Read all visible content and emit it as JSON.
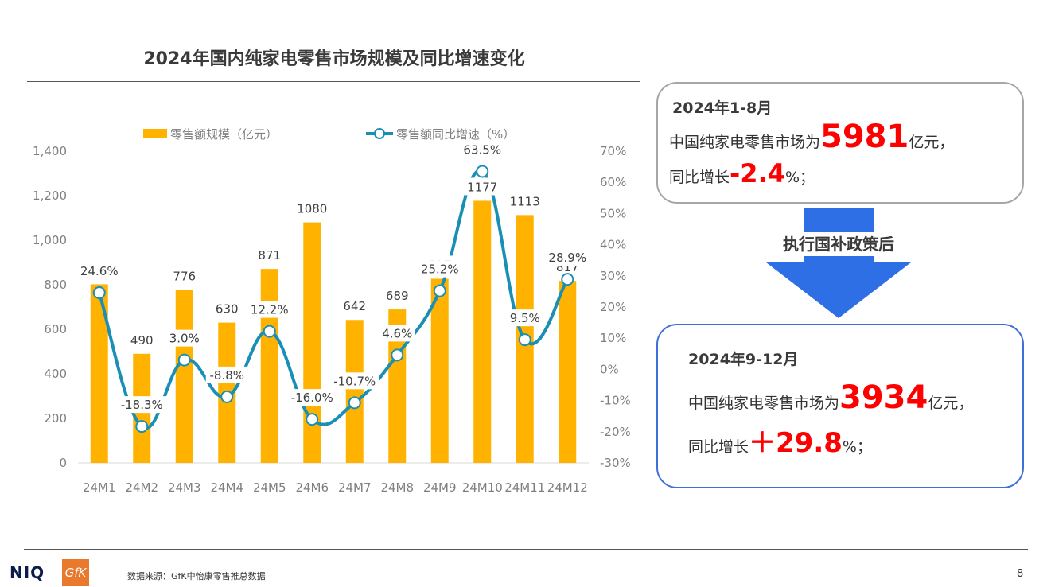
{
  "title": "2024年国内纯家电零售市场规模及同比增速变化",
  "chart_data": {
    "type": "bar+line",
    "categories": [
      "24M1",
      "24M2",
      "24M3",
      "24M4",
      "24M5",
      "24M6",
      "24M7",
      "24M8",
      "24M9",
      "24M10",
      "24M11",
      "24M12"
    ],
    "series": [
      {
        "name": "零售额规模（亿元）",
        "type": "bar",
        "axis": "left",
        "values": [
          802,
          490,
          776,
          630,
          871,
          1080,
          642,
          689,
          827,
          1177,
          1113,
          817
        ],
        "labels": [
          "802",
          "490",
          "776",
          "630",
          "871",
          "1080",
          "642",
          "689",
          "827",
          "1177",
          "1113",
          "817"
        ]
      },
      {
        "name": "零售额同比增速（%）",
        "type": "line",
        "axis": "right",
        "values": [
          24.6,
          -18.3,
          3.0,
          -8.8,
          12.2,
          -16.0,
          -10.7,
          4.6,
          25.2,
          63.5,
          9.5,
          28.9
        ],
        "labels": [
          "24.6%",
          "-18.3%",
          "3.0%",
          "-8.8%",
          "12.2%",
          "-16.0%",
          "-10.7%",
          "4.6%",
          "25.2%",
          "63.5%",
          "9.5%",
          "28.9%"
        ]
      }
    ],
    "ylim_left": [
      0,
      1400
    ],
    "yticks_left": [
      "0",
      "200",
      "400",
      "600",
      "800",
      "1,000",
      "1,200",
      "1,400"
    ],
    "ylim_right": [
      -30,
      70
    ],
    "yticks_right": [
      "-30%",
      "-20%",
      "-10%",
      "0%",
      "10%",
      "20%",
      "30%",
      "40%",
      "50%",
      "60%",
      "70%"
    ],
    "legend_position": "top",
    "grid": false,
    "colors": {
      "bar": "#ffb300",
      "line": "#1a8fb5",
      "marker_fill": "#ffffff"
    }
  },
  "box1": {
    "head": "2024年1-8月",
    "line1_pre": "中国纯家电零售市场为",
    "line1_value": "5981",
    "line1_post": "亿元，",
    "line2_pre": "同比增长",
    "line2_value": "-2.4",
    "line2_post": "%；"
  },
  "arrow_label": "执行国补政策后",
  "box2": {
    "head": "2024年9-12月",
    "line1_pre": "中国纯家电零售市场为",
    "line1_value": "3934",
    "line1_post": "亿元，",
    "line2_pre": "同比增长",
    "line2_value": "＋29.8",
    "line2_post": "%；"
  },
  "footer": {
    "logo_niq": "NIQ",
    "logo_gfk": "GfK",
    "source": "数据来源：GfK中怡康零售推总数据",
    "page": "8"
  },
  "colors": {
    "arrow": "#2e6fe6",
    "box2_border": "#3f6fd8",
    "highlight": "#ff0000"
  }
}
